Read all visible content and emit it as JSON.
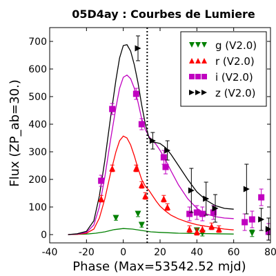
{
  "chart_data": {
    "type": "scatter",
    "title": "05D4ay : Courbes de Lumiere",
    "xlabel": "Phase (Max=53542.52 mjd)",
    "ylabel": "Flux (ZP_ab=30.)",
    "xlim": [
      -40,
      80
    ],
    "ylim": [
      -30,
      750
    ],
    "xticks": [
      -40,
      -20,
      0,
      20,
      40,
      60,
      80
    ],
    "yticks": [
      0,
      100,
      200,
      300,
      400,
      500,
      600,
      700
    ],
    "xtick_labels": [
      "-40",
      "-20",
      "0",
      "20",
      "40",
      "60",
      "80"
    ],
    "ytick_labels": [
      "0",
      "100",
      "200",
      "300",
      "400",
      "500",
      "600",
      "700"
    ],
    "grid": false,
    "legend_position": "top-right",
    "vline_x": 13,
    "series": [
      {
        "name": "g (V2.0)",
        "color": "#008000",
        "marker": "triangle-down",
        "points": [
          {
            "x": -4,
            "y": 60,
            "err": 8
          },
          {
            "x": 8,
            "y": 75,
            "err": 10
          },
          {
            "x": 10,
            "y": 35,
            "err": 8
          },
          {
            "x": 40,
            "y": 15,
            "err": 10
          },
          {
            "x": 43,
            "y": 5,
            "err": 10
          },
          {
            "x": 70,
            "y": 5,
            "err": 12
          }
        ],
        "model": [
          [
            -30,
            0
          ],
          [
            -20,
            2
          ],
          [
            -15,
            5
          ],
          [
            -10,
            10
          ],
          [
            -5,
            18
          ],
          [
            0,
            22
          ],
          [
            5,
            20
          ],
          [
            10,
            15
          ],
          [
            15,
            10
          ],
          [
            20,
            8
          ],
          [
            30,
            5
          ],
          [
            40,
            4
          ],
          [
            50,
            3
          ],
          [
            60,
            2
          ]
        ]
      },
      {
        "name": "r (V2.0)",
        "color": "#ff0000",
        "marker": "triangle-up",
        "points": [
          {
            "x": -12,
            "y": 130,
            "err": 12
          },
          {
            "x": -6,
            "y": 240,
            "err": 12
          },
          {
            "x": 7,
            "y": 240,
            "err": 12
          },
          {
            "x": 10,
            "y": 180,
            "err": 12
          },
          {
            "x": 12,
            "y": 140,
            "err": 12
          },
          {
            "x": 22,
            "y": 130,
            "err": 12
          },
          {
            "x": 24,
            "y": 100,
            "err": 12
          },
          {
            "x": 36,
            "y": 20,
            "err": 12
          },
          {
            "x": 40,
            "y": 10,
            "err": 12
          },
          {
            "x": 43,
            "y": 20,
            "err": 12
          },
          {
            "x": 48,
            "y": 30,
            "err": 12
          },
          {
            "x": 52,
            "y": 20,
            "err": 12
          }
        ],
        "model": [
          [
            -30,
            0
          ],
          [
            -25,
            1
          ],
          [
            -20,
            5
          ],
          [
            -16,
            20
          ],
          [
            -13,
            60
          ],
          [
            -10,
            130
          ],
          [
            -7,
            220
          ],
          [
            -4,
            300
          ],
          [
            -2,
            340
          ],
          [
            0,
            357
          ],
          [
            2,
            350
          ],
          [
            4,
            325
          ],
          [
            6,
            285
          ],
          [
            8,
            240
          ],
          [
            10,
            200
          ],
          [
            12,
            175
          ],
          [
            14,
            160
          ],
          [
            16,
            140
          ],
          [
            18,
            120
          ],
          [
            20,
            103
          ],
          [
            23,
            85
          ],
          [
            26,
            70
          ],
          [
            30,
            57
          ],
          [
            35,
            45
          ],
          [
            40,
            36
          ],
          [
            45,
            30
          ],
          [
            50,
            25
          ],
          [
            55,
            20
          ],
          [
            60,
            17
          ]
        ]
      },
      {
        "name": "i (V2.0)",
        "color": "#c000c0",
        "marker": "square",
        "points": [
          {
            "x": -12,
            "y": 195,
            "err": 20
          },
          {
            "x": -6,
            "y": 455,
            "err": 20
          },
          {
            "x": 7,
            "y": 510,
            "err": 20
          },
          {
            "x": 10,
            "y": 400,
            "err": 20
          },
          {
            "x": 22,
            "y": 280,
            "err": 25
          },
          {
            "x": 23,
            "y": 245,
            "err": 25
          },
          {
            "x": 36,
            "y": 75,
            "err": 25
          },
          {
            "x": 40,
            "y": 80,
            "err": 25
          },
          {
            "x": 43,
            "y": 75,
            "err": 25
          },
          {
            "x": 49,
            "y": 80,
            "err": 25
          },
          {
            "x": 66,
            "y": 45,
            "err": 30
          },
          {
            "x": 70,
            "y": 55,
            "err": 30
          },
          {
            "x": 75,
            "y": 135,
            "err": 30
          },
          {
            "x": 79,
            "y": 10,
            "err": 30
          }
        ],
        "model": [
          [
            -30,
            0
          ],
          [
            -25,
            2
          ],
          [
            -20,
            8
          ],
          [
            -16,
            35
          ],
          [
            -13,
            100
          ],
          [
            -10,
            210
          ],
          [
            -7,
            340
          ],
          [
            -4,
            460
          ],
          [
            -2,
            530
          ],
          [
            0,
            570
          ],
          [
            2,
            578
          ],
          [
            4,
            565
          ],
          [
            6,
            530
          ],
          [
            8,
            480
          ],
          [
            10,
            420
          ],
          [
            12,
            380
          ],
          [
            14,
            355
          ],
          [
            16,
            340
          ],
          [
            18,
            325
          ],
          [
            20,
            305
          ],
          [
            23,
            270
          ],
          [
            26,
            230
          ],
          [
            30,
            180
          ],
          [
            35,
            130
          ],
          [
            40,
            95
          ],
          [
            45,
            75
          ],
          [
            50,
            65
          ],
          [
            55,
            60
          ],
          [
            60,
            58
          ]
        ]
      },
      {
        "name": "z (V2.0)",
        "color": "#000000",
        "marker": "triangle-right",
        "points": [
          {
            "x": 8,
            "y": 675,
            "err": 45
          },
          {
            "x": 16,
            "y": 340,
            "err": 30
          },
          {
            "x": 24,
            "y": 305,
            "err": 35
          },
          {
            "x": 37,
            "y": 160,
            "err": 80
          },
          {
            "x": 45,
            "y": 130,
            "err": 60
          },
          {
            "x": 50,
            "y": 95,
            "err": 50
          },
          {
            "x": 67,
            "y": 165,
            "err": 90
          },
          {
            "x": 75,
            "y": 55,
            "err": 40
          },
          {
            "x": 79,
            "y": 20,
            "err": 40
          }
        ],
        "model": [
          [
            -30,
            0
          ],
          [
            -25,
            3
          ],
          [
            -20,
            12
          ],
          [
            -16,
            50
          ],
          [
            -13,
            140
          ],
          [
            -10,
            270
          ],
          [
            -7,
            420
          ],
          [
            -4,
            560
          ],
          [
            -2,
            640
          ],
          [
            0,
            685
          ],
          [
            2,
            688
          ],
          [
            4,
            665
          ],
          [
            6,
            615
          ],
          [
            8,
            550
          ],
          [
            10,
            470
          ],
          [
            12,
            400
          ],
          [
            14,
            350
          ],
          [
            16,
            335
          ],
          [
            18,
            333
          ],
          [
            20,
            330
          ],
          [
            23,
            315
          ],
          [
            26,
            290
          ],
          [
            30,
            250
          ],
          [
            35,
            200
          ],
          [
            40,
            155
          ],
          [
            45,
            125
          ],
          [
            50,
            105
          ],
          [
            55,
            95
          ],
          [
            60,
            92
          ]
        ]
      }
    ]
  }
}
